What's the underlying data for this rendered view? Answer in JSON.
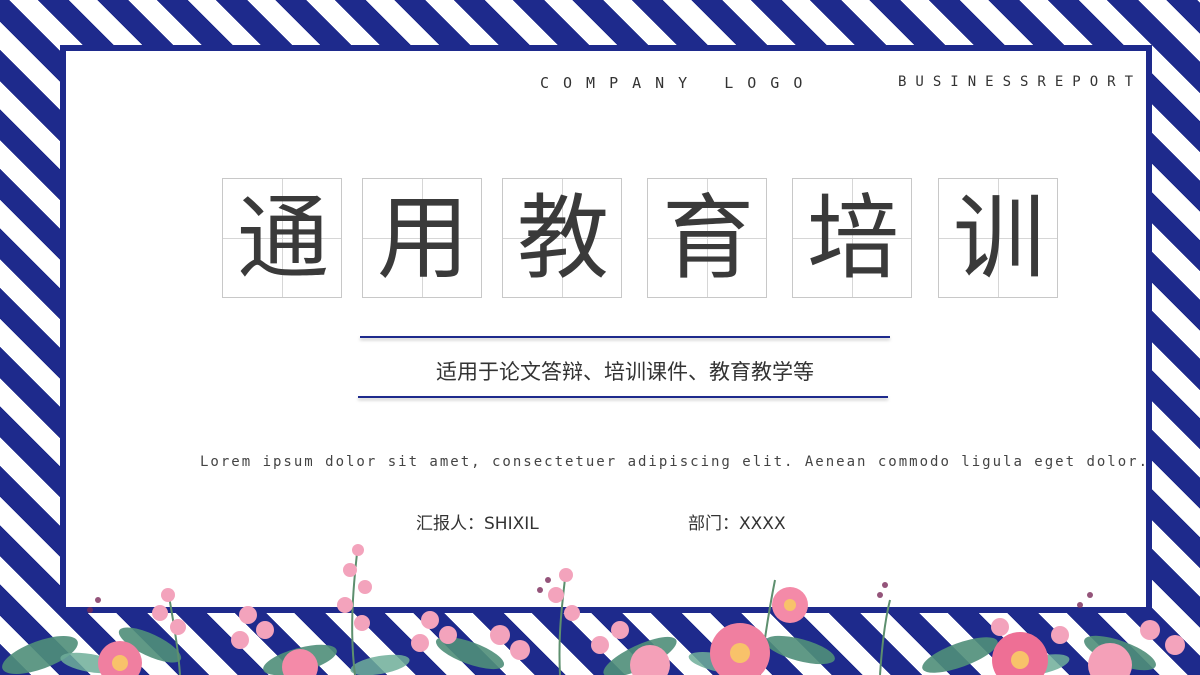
{
  "header": {
    "company_logo": "COMPANY LOGO",
    "report_label": "BUSINESSREPORT"
  },
  "title": {
    "chars": [
      "通",
      "用",
      "教",
      "育",
      "培",
      "训"
    ]
  },
  "subtitle": "适用于论文答辩、培训课件、教育教学等",
  "body_text": "Lorem ipsum dolor sit amet, consectetuer adipiscing elit. Aenean commodo ligula eget dolor.",
  "meta": {
    "reporter": "汇报人：SHIXIL",
    "department": "部门：XXXX"
  },
  "colors": {
    "accent": "#1e2a8c",
    "flower_pink": "#f07fa0",
    "leaf_green": "#4f8f7a"
  }
}
